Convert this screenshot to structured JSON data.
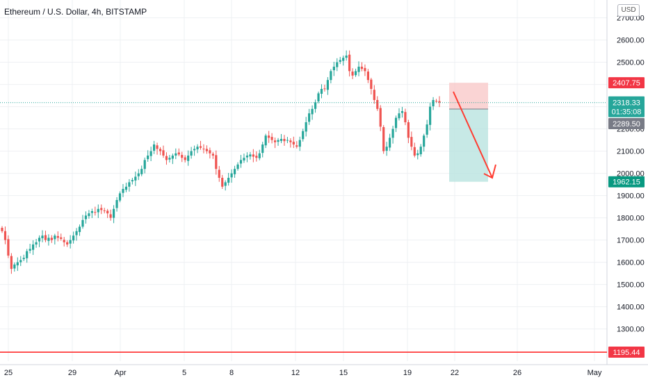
{
  "header": {
    "symbol_line": "Ethereum / U.S. Dollar, 4h, BITSTAMP"
  },
  "currency_button": "USD",
  "colors": {
    "up": "#26a69a",
    "down": "#ef5350",
    "grid": "#eef0f3",
    "hline": "#ff2a2a",
    "stop": "#f9c9c9",
    "target": "#b9e4e0",
    "arrow": "#ff3b30"
  },
  "badges": {
    "stop": "2407.75",
    "last": "2318.33",
    "countdown": "01:35:08",
    "entry": "2289.50",
    "target": "1962.15",
    "line": "1195.44"
  },
  "chart_data": {
    "type": "candlestick",
    "title": "Ethereum / U.S. Dollar, 4h, BITSTAMP",
    "ylim": [
      1155,
      2780
    ],
    "y_ticks": [
      "2700.00",
      "2600.00",
      "2500.00",
      "2400.00",
      "2300.00",
      "2200.00",
      "2100.00",
      "2000.00",
      "1900.00",
      "1800.00",
      "1700.00",
      "1600.00",
      "1500.00",
      "1400.00",
      "1300.00"
    ],
    "x_ticks": [
      "25",
      "29",
      "Apr",
      "5",
      "8",
      "12",
      "15",
      "19",
      "22",
      "26",
      "May"
    ],
    "closes": [
      1740,
      1700,
      1630,
      1570,
      1590,
      1600,
      1610,
      1620,
      1650,
      1660,
      1680,
      1690,
      1710,
      1720,
      1700,
      1710,
      1700,
      1720,
      1710,
      1705,
      1690,
      1680,
      1700,
      1720,
      1740,
      1760,
      1790,
      1810,
      1820,
      1830,
      1825,
      1840,
      1835,
      1830,
      1820,
      1800,
      1840,
      1880,
      1910,
      1930,
      1940,
      1960,
      1970,
      1985,
      2000,
      2020,
      2060,
      2080,
      2100,
      2130,
      2110,
      2100,
      2080,
      2060,
      2070,
      2080,
      2090,
      2085,
      2070,
      2060,
      2080,
      2100,
      2110,
      2120,
      2115,
      2110,
      2100,
      2090,
      2080,
      2020,
      1980,
      1940,
      1960,
      1980,
      2000,
      2020,
      2040,
      2060,
      2070,
      2080,
      2085,
      2075,
      2070,
      2090,
      2130,
      2170,
      2160,
      2150,
      2140,
      2150,
      2155,
      2145,
      2150,
      2140,
      2130,
      2120,
      2150,
      2190,
      2230,
      2270,
      2290,
      2320,
      2360,
      2380,
      2380,
      2420,
      2460,
      2480,
      2500,
      2510,
      2520,
      2530,
      2460,
      2440,
      2460,
      2480,
      2470,
      2460,
      2420,
      2380,
      2330,
      2290,
      2210,
      2100,
      2120,
      2160,
      2200,
      2250,
      2270,
      2280,
      2230,
      2160,
      2120,
      2080,
      2090,
      2120,
      2170,
      2220,
      2300,
      2330,
      2325,
      2318.33
    ],
    "horizontal_line": 1195.44,
    "position": {
      "type": "short",
      "entry": 2289.5,
      "stop": 2407.75,
      "target": 1962.15
    },
    "last_price": 2318.33,
    "grid": true
  }
}
